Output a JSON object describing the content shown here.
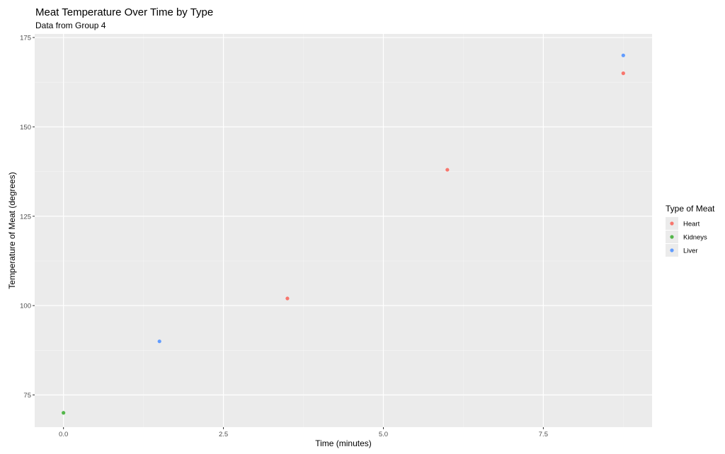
{
  "chart_data": {
    "type": "scatter",
    "title": "Meat Temperature Over Time by Type",
    "subtitle": "Data from Group 4",
    "xlabel": "Time (minutes)",
    "ylabel": "Temperature of Meat (degrees)",
    "xlim": [
      -0.45,
      9.2
    ],
    "ylim": [
      66,
      176
    ],
    "x_ticks": [
      0,
      2.5,
      5,
      7.5
    ],
    "x_tick_labels": [
      "0.0",
      "2.5",
      "5.0",
      "7.5"
    ],
    "y_ticks": [
      75,
      100,
      125,
      150,
      175
    ],
    "y_tick_labels": [
      "75",
      "100",
      "125",
      "150",
      "175"
    ],
    "grid": true,
    "legend": {
      "title": "Type of Meat",
      "position": "right"
    },
    "series": [
      {
        "name": "Heart",
        "color": "#f8766d",
        "points": [
          {
            "x": 3.5,
            "y": 102
          },
          {
            "x": 6.0,
            "y": 138
          },
          {
            "x": 8.75,
            "y": 165
          }
        ]
      },
      {
        "name": "Kidneys",
        "color": "#53b64a",
        "points": [
          {
            "x": 0.0,
            "y": 70
          }
        ]
      },
      {
        "name": "Liver",
        "color": "#619cff",
        "points": [
          {
            "x": 1.5,
            "y": 90
          },
          {
            "x": 8.75,
            "y": 170
          }
        ]
      }
    ]
  }
}
